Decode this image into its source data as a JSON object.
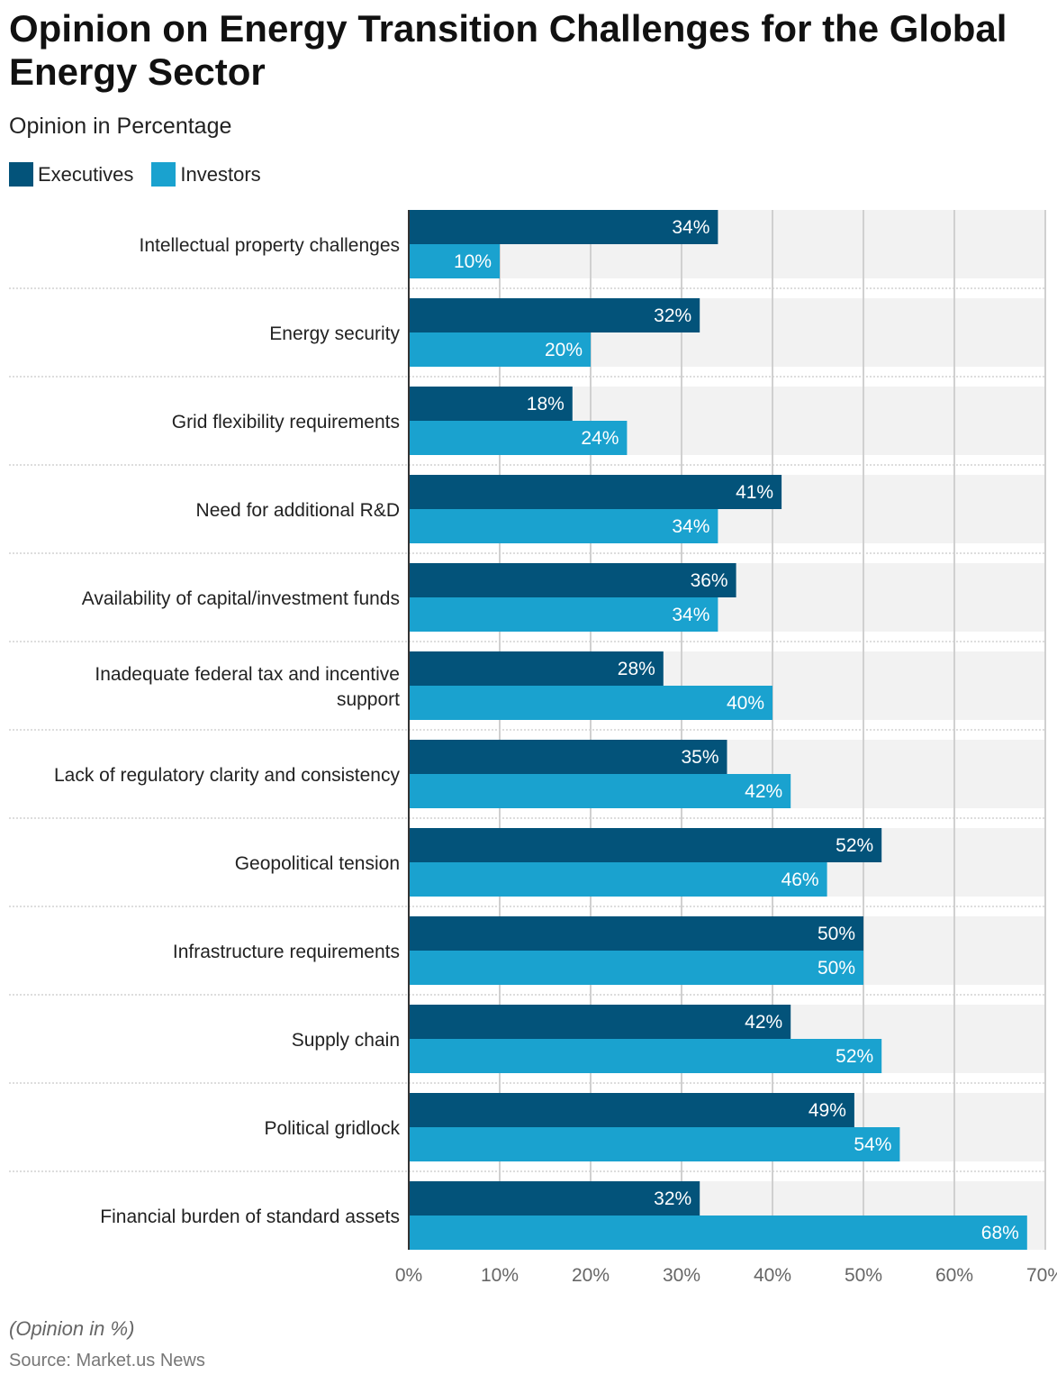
{
  "chart_data": {
    "type": "bar",
    "orientation": "horizontal",
    "title": "Opinion on Energy Transition Challenges for the Global Energy Sector",
    "subtitle": "Opinion in Percentage",
    "categories": [
      "Intellectual property challenges",
      "Energy security",
      "Grid flexibility requirements",
      "Need for additional R&D",
      "Availability of capital/investment funds",
      "Inadequate federal tax and incentive support",
      "Lack of regulatory clarity and consistency",
      "Geopolitical tension",
      "Infrastructure requirements",
      "Supply chain",
      "Political gridlock",
      "Financial burden of standard assets"
    ],
    "series": [
      {
        "name": "Executives",
        "color": "#03537a",
        "values": [
          34,
          32,
          18,
          41,
          36,
          28,
          35,
          52,
          50,
          42,
          49,
          32
        ]
      },
      {
        "name": "Investors",
        "color": "#1aa2cf",
        "values": [
          10,
          20,
          24,
          34,
          34,
          40,
          42,
          46,
          50,
          52,
          54,
          68
        ]
      }
    ],
    "xlim": [
      0,
      70
    ],
    "xticks": [
      "0%",
      "10%",
      "20%",
      "30%",
      "40%",
      "50%",
      "60%",
      "70%"
    ],
    "grid": true,
    "legend": "top-left",
    "note": "(Opinion in %)",
    "source": "Source: Market.us News"
  }
}
